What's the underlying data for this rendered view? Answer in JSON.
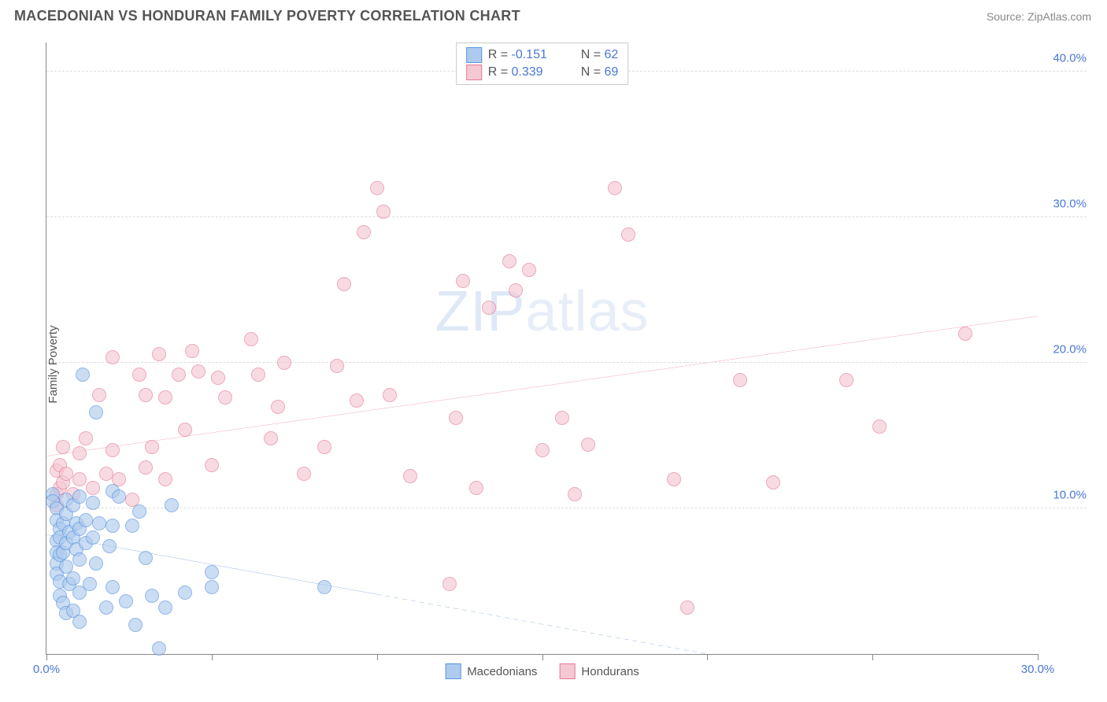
{
  "header": {
    "title": "MACEDONIAN VS HONDURAN FAMILY POVERTY CORRELATION CHART",
    "source": "Source: ZipAtlas.com"
  },
  "chart": {
    "type": "scatter",
    "ylabel": "Family Poverty",
    "watermark_a": "ZIP",
    "watermark_b": "atlas",
    "xlim": [
      0,
      30
    ],
    "ylim": [
      0,
      42
    ],
    "xticks": [
      0,
      5,
      10,
      15,
      20,
      25,
      30
    ],
    "xtick_labels": [
      "0.0%",
      "",
      "",
      "",
      "",
      "",
      "30.0%"
    ],
    "yticks": [
      10,
      20,
      30,
      40
    ],
    "ytick_labels": [
      "10.0%",
      "20.0%",
      "30.0%",
      "40.0%"
    ],
    "grid_color": "#dddddd",
    "axis_color": "#888888",
    "background_color": "#ffffff",
    "marker_radius": 9,
    "series": {
      "macedonians": {
        "label": "Macedonians",
        "fill": "#aecbee",
        "stroke": "#5a93dd",
        "R_label": "R = ",
        "R_value": "-0.151",
        "N_label": "N = ",
        "N_value": "62",
        "trend": {
          "x1": 0,
          "y1": 8.2,
          "x2": 20,
          "y2": 0.0,
          "solid_until_x": 10,
          "color": "#3a72c9",
          "width": 2
        },
        "points": [
          [
            0.2,
            11.0
          ],
          [
            0.2,
            10.5
          ],
          [
            0.3,
            10.0
          ],
          [
            0.3,
            9.2
          ],
          [
            0.3,
            7.8
          ],
          [
            0.3,
            7.0
          ],
          [
            0.3,
            6.2
          ],
          [
            0.3,
            5.5
          ],
          [
            0.4,
            8.6
          ],
          [
            0.4,
            8.0
          ],
          [
            0.4,
            6.8
          ],
          [
            0.4,
            5.0
          ],
          [
            0.4,
            4.0
          ],
          [
            0.5,
            9.0
          ],
          [
            0.5,
            7.0
          ],
          [
            0.5,
            3.5
          ],
          [
            0.6,
            10.6
          ],
          [
            0.6,
            9.6
          ],
          [
            0.6,
            7.6
          ],
          [
            0.6,
            6.0
          ],
          [
            0.6,
            2.8
          ],
          [
            0.7,
            8.4
          ],
          [
            0.7,
            4.8
          ],
          [
            0.8,
            10.2
          ],
          [
            0.8,
            8.0
          ],
          [
            0.8,
            5.2
          ],
          [
            0.8,
            3.0
          ],
          [
            0.9,
            9.0
          ],
          [
            0.9,
            7.2
          ],
          [
            1.0,
            10.8
          ],
          [
            1.0,
            8.6
          ],
          [
            1.0,
            6.5
          ],
          [
            1.0,
            4.2
          ],
          [
            1.0,
            2.2
          ],
          [
            1.1,
            19.2
          ],
          [
            1.2,
            9.2
          ],
          [
            1.2,
            7.6
          ],
          [
            1.3,
            4.8
          ],
          [
            1.4,
            10.4
          ],
          [
            1.4,
            8.0
          ],
          [
            1.5,
            16.6
          ],
          [
            1.5,
            6.2
          ],
          [
            1.6,
            9.0
          ],
          [
            1.8,
            3.2
          ],
          [
            1.9,
            7.4
          ],
          [
            2.0,
            11.2
          ],
          [
            2.0,
            8.8
          ],
          [
            2.0,
            4.6
          ],
          [
            2.2,
            10.8
          ],
          [
            2.4,
            3.6
          ],
          [
            2.6,
            8.8
          ],
          [
            2.7,
            2.0
          ],
          [
            2.8,
            9.8
          ],
          [
            3.0,
            6.6
          ],
          [
            3.2,
            4.0
          ],
          [
            3.4,
            0.4
          ],
          [
            3.6,
            3.2
          ],
          [
            3.8,
            10.2
          ],
          [
            4.2,
            4.2
          ],
          [
            5.0,
            4.6
          ],
          [
            5.0,
            5.6
          ],
          [
            8.4,
            4.6
          ]
        ]
      },
      "hondurans": {
        "label": "Hondurans",
        "fill": "#f5c9d4",
        "stroke": "#e47a97",
        "R_label": "R = ",
        "R_value": "0.339",
        "N_label": "N = ",
        "N_value": "69",
        "trend": {
          "x1": 0,
          "y1": 13.6,
          "x2": 30,
          "y2": 23.2,
          "solid_until_x": 30,
          "color": "#e05a82",
          "width": 2
        },
        "points": [
          [
            0.3,
            11.0
          ],
          [
            0.3,
            10.2
          ],
          [
            0.3,
            12.6
          ],
          [
            0.4,
            13.0
          ],
          [
            0.4,
            11.4
          ],
          [
            0.5,
            14.2
          ],
          [
            0.5,
            11.8
          ],
          [
            0.6,
            12.4
          ],
          [
            0.8,
            11.0
          ],
          [
            1.0,
            12.0
          ],
          [
            1.0,
            13.8
          ],
          [
            1.2,
            14.8
          ],
          [
            1.4,
            11.4
          ],
          [
            1.6,
            17.8
          ],
          [
            1.8,
            12.4
          ],
          [
            2.0,
            20.4
          ],
          [
            2.0,
            14.0
          ],
          [
            2.2,
            12.0
          ],
          [
            2.6,
            10.6
          ],
          [
            2.8,
            19.2
          ],
          [
            3.0,
            17.8
          ],
          [
            3.0,
            12.8
          ],
          [
            3.2,
            14.2
          ],
          [
            3.4,
            20.6
          ],
          [
            3.6,
            12.0
          ],
          [
            3.6,
            17.6
          ],
          [
            4.0,
            19.2
          ],
          [
            4.2,
            15.4
          ],
          [
            4.4,
            20.8
          ],
          [
            4.6,
            19.4
          ],
          [
            5.0,
            13.0
          ],
          [
            5.2,
            19.0
          ],
          [
            5.4,
            17.6
          ],
          [
            6.2,
            21.6
          ],
          [
            6.4,
            19.2
          ],
          [
            6.8,
            14.8
          ],
          [
            7.0,
            17.0
          ],
          [
            7.2,
            20.0
          ],
          [
            7.8,
            12.4
          ],
          [
            8.4,
            14.2
          ],
          [
            8.8,
            19.8
          ],
          [
            9.0,
            25.4
          ],
          [
            9.4,
            17.4
          ],
          [
            9.6,
            29.0
          ],
          [
            10.0,
            32.0
          ],
          [
            10.2,
            30.4
          ],
          [
            10.4,
            17.8
          ],
          [
            11.0,
            12.2
          ],
          [
            12.2,
            4.8
          ],
          [
            12.4,
            16.2
          ],
          [
            12.6,
            25.6
          ],
          [
            13.0,
            11.4
          ],
          [
            13.4,
            23.8
          ],
          [
            14.0,
            27.0
          ],
          [
            14.2,
            25.0
          ],
          [
            14.6,
            26.4
          ],
          [
            15.0,
            14.0
          ],
          [
            15.6,
            16.2
          ],
          [
            16.0,
            11.0
          ],
          [
            16.4,
            14.4
          ],
          [
            17.2,
            32.0
          ],
          [
            17.6,
            28.8
          ],
          [
            19.0,
            12.0
          ],
          [
            19.4,
            3.2
          ],
          [
            21.0,
            18.8
          ],
          [
            22.0,
            11.8
          ],
          [
            24.2,
            18.8
          ],
          [
            25.2,
            15.6
          ],
          [
            27.8,
            22.0
          ]
        ]
      }
    }
  }
}
